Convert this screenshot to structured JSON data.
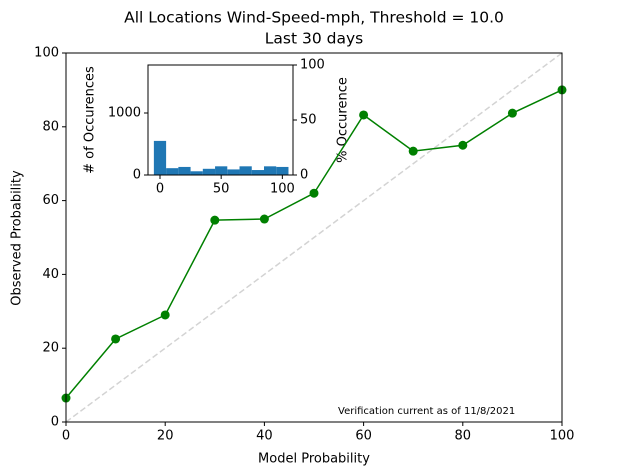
{
  "chart_data": [
    {
      "type": "line",
      "title": "All Locations Wind-Speed-mph, Threshold = 10.0",
      "subtitle": "Last 30 days",
      "x_label": "Model Probability",
      "y_label": "Observed Probability",
      "annotation": "Verification current as of 11/8/2021",
      "x": [
        0,
        10,
        20,
        30,
        40,
        50,
        60,
        70,
        80,
        90,
        100
      ],
      "values": [
        6.5,
        22.5,
        29,
        54.7,
        55,
        62,
        83.2,
        73.4,
        75,
        83.7,
        90
      ],
      "color": "#008000",
      "reference_color": "#d3d3d3",
      "xlim": [
        0,
        100
      ],
      "ylim": [
        0,
        100
      ],
      "xticks": [
        0,
        20,
        40,
        60,
        80,
        100
      ],
      "yticks": [
        0,
        20,
        40,
        60,
        80,
        100
      ]
    },
    {
      "type": "histogram",
      "y_label": "# of Occurences",
      "y2_label": "% Occurence",
      "bins": [
        -5,
        5,
        15,
        25,
        35,
        45,
        55,
        65,
        75,
        85,
        95,
        105
      ],
      "values": [
        550,
        110,
        130,
        60,
        100,
        140,
        90,
        140,
        80,
        140,
        130
      ],
      "color": "#1f77b4",
      "xlim": [
        -9.8,
        108.7
      ],
      "ylim": [
        0,
        1774
      ],
      "xticks": [
        0,
        50,
        100
      ],
      "yticks": [
        0,
        1000
      ],
      "y2lim": [
        0,
        100
      ],
      "y2ticks": [
        0,
        50,
        100
      ]
    }
  ]
}
